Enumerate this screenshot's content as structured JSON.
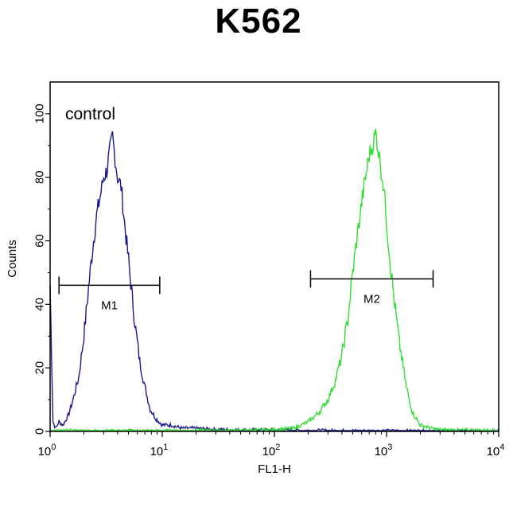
{
  "title": "K562",
  "chart_data": {
    "type": "line",
    "title": "K562",
    "xlabel": "FL1-H",
    "ylabel": "Counts",
    "x_scale": "log",
    "xlim": [
      1,
      10000
    ],
    "ylim": [
      0,
      110
    ],
    "x_ticks": [
      {
        "base": "10",
        "exp": "0"
      },
      {
        "base": "10",
        "exp": "1"
      },
      {
        "base": "10",
        "exp": "2"
      },
      {
        "base": "10",
        "exp": "3"
      },
      {
        "base": "10",
        "exp": "4"
      }
    ],
    "y_ticks": [
      "0",
      "20",
      "40",
      "60",
      "80",
      "100"
    ],
    "annotation": "control",
    "colors": {
      "control": "#1a1a8c",
      "sample": "#33dd33",
      "axis": "#000000"
    },
    "series": [
      {
        "key": "control",
        "x": [
          1.0,
          1.06,
          1.12,
          1.2,
          1.3,
          1.45,
          1.6,
          1.8,
          2.0,
          2.2,
          2.4,
          2.6,
          2.8,
          3.0,
          3.2,
          3.4,
          3.6,
          3.8,
          4.0,
          4.3,
          4.6,
          5.0,
          5.4,
          5.8,
          6.3,
          7.0,
          7.8,
          8.8,
          10,
          12,
          15,
          20,
          30,
          50,
          100,
          200,
          500,
          1000,
          3000,
          10000
        ],
        "y": [
          46,
          3,
          1,
          3,
          2,
          5,
          10,
          17,
          30,
          45,
          58,
          68,
          74,
          80,
          82,
          88,
          93,
          86,
          80,
          77,
          66,
          54,
          42,
          32,
          22,
          14,
          7,
          4,
          2,
          2,
          1,
          1,
          0.6,
          0.5,
          0.4,
          0.3,
          0.2,
          0.2,
          0.1,
          0.1
        ]
      },
      {
        "key": "sample",
        "x": [
          1,
          10,
          50,
          100,
          150,
          200,
          250,
          300,
          350,
          400,
          450,
          500,
          550,
          600,
          650,
          700,
          750,
          800,
          850,
          900,
          950,
          1000,
          1100,
          1200,
          1300,
          1500,
          1700,
          2000,
          2500,
          3000,
          5000,
          10000
        ],
        "y": [
          0.2,
          0.2,
          0.3,
          0.5,
          1,
          3,
          6,
          10,
          16,
          24,
          35,
          50,
          62,
          72,
          80,
          87,
          90,
          94,
          88,
          82,
          76,
          66,
          50,
          38,
          28,
          14,
          6,
          2,
          1,
          0.5,
          0.4,
          0.3
        ]
      }
    ],
    "markers": [
      {
        "label": "M1",
        "x_start": 1.2,
        "x_end": 9.5,
        "y": 46
      },
      {
        "label": "M2",
        "x_start": 210,
        "x_end": 2600,
        "y": 48
      }
    ]
  }
}
